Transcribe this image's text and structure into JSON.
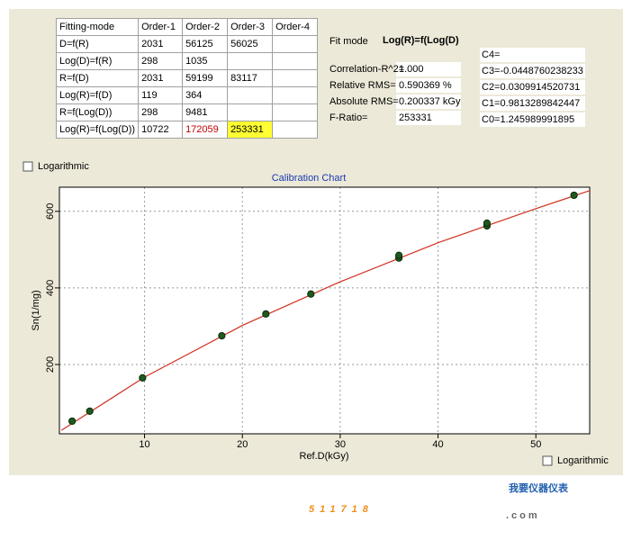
{
  "table": {
    "header": [
      "Fitting-mode",
      "Order-1",
      "Order-2",
      "Order-3",
      "Order-4"
    ],
    "rows": [
      [
        "D=f(R)",
        2031,
        56125,
        56025,
        null
      ],
      [
        "Log(D)=f(R)",
        298,
        1035,
        null,
        null
      ],
      [
        "R=f(D)",
        2031,
        59199,
        83117,
        null
      ],
      [
        "Log(R)=f(D)",
        119,
        364,
        null,
        null
      ],
      [
        "R=f(Log(D))",
        298,
        9481,
        null,
        null
      ],
      [
        "Log(R)=f(Log(D))",
        10722,
        172059,
        253331,
        null
      ]
    ],
    "cell_styles": [
      {
        "row": 5,
        "col": 2,
        "color": "#c00000"
      },
      {
        "row": 5,
        "col": 3,
        "background": "#ffff33"
      }
    ]
  },
  "fit": {
    "mode_label": "Fit mode",
    "mode": "Log(R)=f(Log(D)",
    "stats": [
      {
        "label": "Correlation-R^2=",
        "value": "1.000"
      },
      {
        "label": "Relative RMS=",
        "value": "0.590369 %"
      },
      {
        "label": "Absolute RMS=",
        "value": "0.200337 kGy"
      },
      {
        "label": "F-Ratio=",
        "value": "253331"
      }
    ],
    "coefficients": [
      "C4=",
      "C3=-0.0448760238233",
      "C2=0.0309914520731",
      "C1=0.9813289842447",
      "C0=1.245989991895"
    ]
  },
  "checkbox_top": "Logarithmic",
  "checkbox_bottom": "Logarithmic",
  "chart_data": {
    "type": "scatter",
    "title": "Calibration Chart",
    "x_label": "Ref.D(kGy)",
    "y_label": "Sn(1/mg)",
    "xlim": [
      1.3,
      55.5
    ],
    "ylim": [
      19,
      663
    ],
    "xticks": [
      10,
      20,
      30,
      40,
      50
    ],
    "yticks": [
      200,
      400,
      600
    ],
    "grid": true,
    "series": [
      {
        "color": "#1e5a1e",
        "x": [
          2.6,
          4.4,
          9.8,
          17.9,
          22.4,
          27.0,
          36.0,
          36.0,
          45.0,
          45.0,
          53.9
        ],
        "values": [
          52,
          78,
          165,
          275,
          332,
          384,
          478,
          485,
          562,
          569,
          642
        ]
      },
      {
        "type": "line",
        "color": "#d03020",
        "x": [
          1.5,
          10,
          20,
          30,
          40,
          50,
          55.5
        ],
        "values": [
          28,
          167,
          302,
          416,
          518,
          607,
          654
        ]
      }
    ]
  },
  "watermark": {
    "number": "511718",
    "domain": ".com",
    "brand": "我要仪器仪表"
  }
}
